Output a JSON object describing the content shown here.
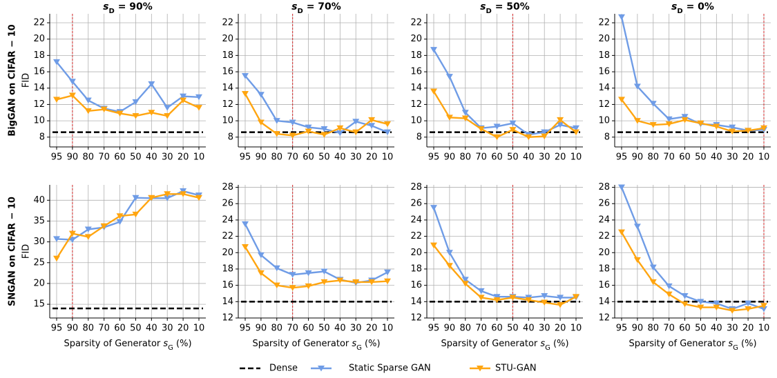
{
  "row_labels": [
    "BigGAN on CIFAR − 10",
    "SNGAN on CIFAR − 10"
  ],
  "chart_data": [
    {
      "type": "line",
      "title": {
        "base": "s",
        "sub": "D",
        "tail": " = 90%"
      },
      "y_label": "FID",
      "categories": [
        "95",
        "90",
        "80",
        "70",
        "60",
        "50",
        "40",
        "30",
        "20",
        "10"
      ],
      "highlight": "90",
      "ylim": [
        6.8,
        23.1
      ],
      "yticks": [
        8,
        10,
        12,
        14,
        16,
        18,
        20,
        22
      ],
      "grid": true,
      "reference": {
        "name": "Dense",
        "value": 8.6,
        "color": "#000000"
      },
      "series": [
        {
          "name": "Static Sparse GAN",
          "color": "#6f9ce6",
          "values": [
            17.2,
            14.8,
            12.5,
            11.5,
            11.1,
            12.3,
            14.5,
            11.6,
            13.0,
            12.9
          ]
        },
        {
          "name": "STU-GAN",
          "color": "#ffa510",
          "values": [
            12.6,
            13.1,
            11.2,
            11.4,
            10.9,
            10.6,
            11.0,
            10.6,
            12.5,
            11.6
          ]
        }
      ]
    },
    {
      "type": "line",
      "title": {
        "base": "s",
        "sub": "D",
        "tail": " = 70%"
      },
      "categories": [
        "95",
        "90",
        "80",
        "70",
        "60",
        "50",
        "40",
        "30",
        "20",
        "10"
      ],
      "highlight": "70",
      "ylim": [
        6.8,
        23.1
      ],
      "yticks": [
        8,
        10,
        12,
        14,
        16,
        18,
        20,
        22
      ],
      "grid": true,
      "reference": {
        "name": "Dense",
        "value": 8.6,
        "color": "#000000"
      },
      "series": [
        {
          "name": "Static Sparse GAN",
          "color": "#6f9ce6",
          "values": [
            15.5,
            13.2,
            10.0,
            9.8,
            9.2,
            9.0,
            8.5,
            9.9,
            9.4,
            8.6
          ]
        },
        {
          "name": "STU-GAN",
          "color": "#ffa510",
          "values": [
            13.3,
            9.8,
            8.4,
            8.2,
            8.7,
            8.3,
            9.1,
            8.6,
            10.1,
            9.6
          ]
        }
      ]
    },
    {
      "type": "line",
      "title": {
        "base": "s",
        "sub": "D",
        "tail": " = 50%"
      },
      "categories": [
        "95",
        "90",
        "80",
        "70",
        "60",
        "50",
        "40",
        "30",
        "20",
        "10"
      ],
      "highlight": "50",
      "ylim": [
        6.8,
        23.1
      ],
      "yticks": [
        8,
        10,
        12,
        14,
        16,
        18,
        20,
        22
      ],
      "grid": true,
      "reference": {
        "name": "Dense",
        "value": 8.6,
        "color": "#000000"
      },
      "series": [
        {
          "name": "Static Sparse GAN",
          "color": "#6f9ce6",
          "values": [
            18.7,
            15.4,
            11.0,
            9.1,
            9.3,
            9.7,
            8.3,
            8.6,
            9.5,
            9.1
          ]
        },
        {
          "name": "STU-GAN",
          "color": "#ffa510",
          "values": [
            13.6,
            10.4,
            10.3,
            9.0,
            8.0,
            8.9,
            8.0,
            8.1,
            10.1,
            8.6
          ]
        }
      ]
    },
    {
      "type": "line",
      "title": {
        "base": "s",
        "sub": "D",
        "tail": " = 0%"
      },
      "categories": [
        "95",
        "90",
        "80",
        "70",
        "60",
        "50",
        "40",
        "30",
        "20",
        "10"
      ],
      "highlight": "10",
      "ylim": [
        6.8,
        23.1
      ],
      "yticks": [
        8,
        10,
        12,
        14,
        16,
        18,
        20,
        22
      ],
      "grid": true,
      "reference": {
        "name": "Dense",
        "value": 8.6,
        "color": "#000000"
      },
      "series": [
        {
          "name": "Static Sparse GAN",
          "color": "#6f9ce6",
          "values": [
            22.7,
            14.2,
            12.1,
            10.2,
            10.5,
            9.6,
            9.5,
            9.2,
            8.8,
            8.9
          ]
        },
        {
          "name": "STU-GAN",
          "color": "#ffa510",
          "values": [
            12.6,
            10.0,
            9.5,
            9.6,
            10.1,
            9.7,
            9.3,
            8.7,
            8.8,
            9.1
          ]
        }
      ]
    },
    {
      "type": "line",
      "y_label": "FID",
      "x_label": {
        "base": "Sparsity of Generator ",
        "var": "s",
        "sub": "G",
        "tail": " (%)"
      },
      "categories": [
        "95",
        "90",
        "80",
        "70",
        "60",
        "50",
        "40",
        "30",
        "20",
        "10"
      ],
      "highlight": "90",
      "ylim": [
        11.7,
        43.7
      ],
      "yticks": [
        15,
        20,
        25,
        30,
        35,
        40
      ],
      "grid": true,
      "reference": {
        "name": "Dense",
        "value": 14,
        "color": "#000000"
      },
      "series": [
        {
          "name": "Static Sparse GAN",
          "color": "#6f9ce6",
          "values": [
            30.7,
            30.5,
            33.0,
            33.5,
            34.8,
            40.6,
            40.5,
            40.5,
            42.2,
            41.2
          ]
        },
        {
          "name": "STU-GAN",
          "color": "#ffa510",
          "values": [
            26.0,
            32.0,
            31.2,
            33.8,
            36.2,
            36.6,
            40.6,
            41.5,
            41.5,
            40.6
          ]
        }
      ]
    },
    {
      "type": "line",
      "x_label": {
        "base": "Sparsity of Generator ",
        "var": "s",
        "sub": "G",
        "tail": " (%)"
      },
      "categories": [
        "95",
        "90",
        "80",
        "70",
        "60",
        "50",
        "40",
        "30",
        "20",
        "10"
      ],
      "highlight": "70",
      "ylim": [
        12,
        28.3
      ],
      "yticks": [
        12,
        14,
        16,
        18,
        20,
        22,
        24,
        26,
        28
      ],
      "grid": true,
      "reference": {
        "name": "Dense",
        "value": 14,
        "color": "#000000"
      },
      "series": [
        {
          "name": "Static Sparse GAN",
          "color": "#6f9ce6",
          "values": [
            23.5,
            19.7,
            18.1,
            17.3,
            17.5,
            17.7,
            16.7,
            16.3,
            16.6,
            17.6
          ]
        },
        {
          "name": "STU-GAN",
          "color": "#ffa510",
          "values": [
            20.7,
            17.5,
            16.0,
            15.7,
            15.9,
            16.4,
            16.6,
            16.4,
            16.4,
            16.5
          ]
        }
      ]
    },
    {
      "type": "line",
      "x_label": {
        "base": "Sparsity of Generator ",
        "var": "s",
        "sub": "G",
        "tail": " (%)"
      },
      "categories": [
        "95",
        "90",
        "80",
        "70",
        "60",
        "50",
        "40",
        "30",
        "20",
        "10"
      ],
      "highlight": "50",
      "ylim": [
        12,
        28.3
      ],
      "yticks": [
        12,
        14,
        16,
        18,
        20,
        22,
        24,
        26,
        28
      ],
      "grid": true,
      "reference": {
        "name": "Dense",
        "value": 14,
        "color": "#000000"
      },
      "series": [
        {
          "name": "Static Sparse GAN",
          "color": "#6f9ce6",
          "values": [
            25.5,
            20.0,
            16.7,
            15.3,
            14.6,
            14.6,
            14.5,
            14.7,
            14.5,
            14.5
          ]
        },
        {
          "name": "STU-GAN",
          "color": "#ffa510",
          "values": [
            20.9,
            18.4,
            16.2,
            14.5,
            14.2,
            14.5,
            14.2,
            13.9,
            13.6,
            14.6
          ]
        }
      ]
    },
    {
      "type": "line",
      "x_label": {
        "base": "Sparsity of Generator ",
        "var": "s",
        "sub": "G",
        "tail": " (%)"
      },
      "categories": [
        "95",
        "90",
        "80",
        "70",
        "60",
        "50",
        "40",
        "30",
        "20",
        "10"
      ],
      "highlight": "10",
      "ylim": [
        12,
        28.3
      ],
      "yticks": [
        12,
        14,
        16,
        18,
        20,
        22,
        24,
        26,
        28
      ],
      "grid": true,
      "reference": {
        "name": "Dense",
        "value": 14,
        "color": "#000000"
      },
      "series": [
        {
          "name": "Static Sparse GAN",
          "color": "#6f9ce6",
          "values": [
            28.0,
            23.2,
            18.2,
            15.9,
            14.7,
            14.0,
            13.8,
            13.1,
            13.8,
            13.1
          ]
        },
        {
          "name": "STU-GAN",
          "color": "#ffa510",
          "values": [
            22.5,
            19.1,
            16.4,
            14.9,
            13.7,
            13.3,
            13.3,
            12.9,
            13.1,
            13.5
          ]
        }
      ]
    }
  ]
}
